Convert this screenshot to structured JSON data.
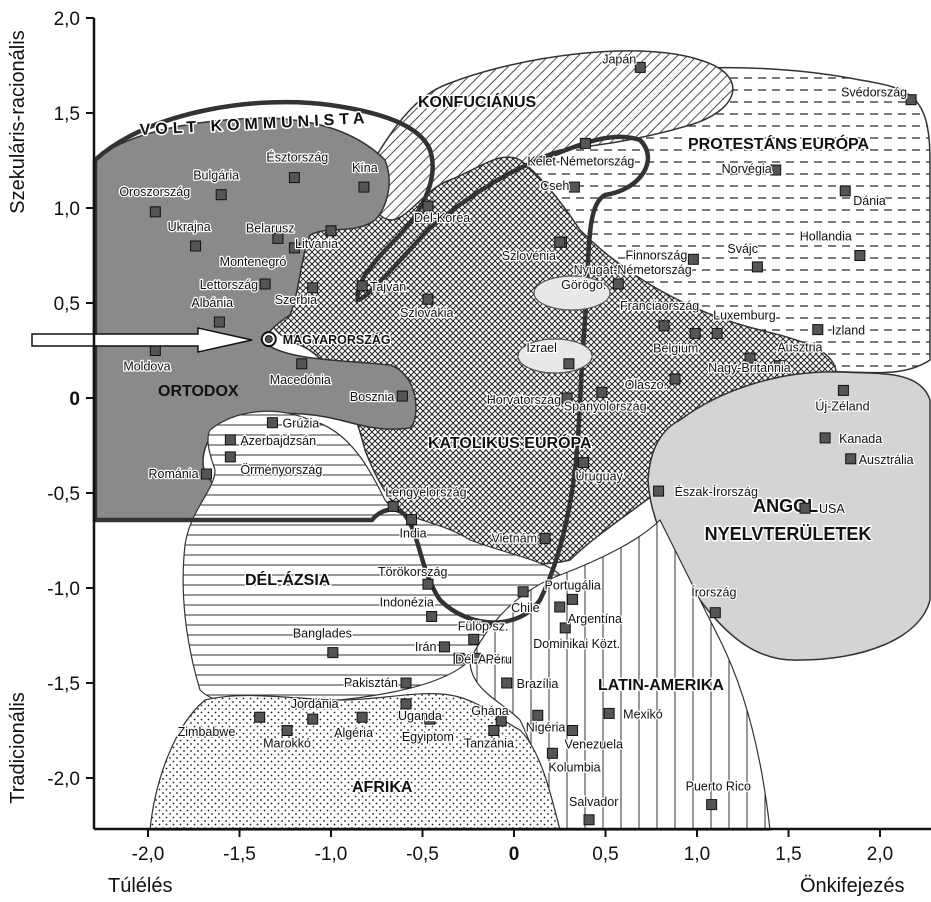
{
  "chart_data": {
    "type": "scatter",
    "xlabel_left": "Túlélés",
    "xlabel_right": "Önkifejezés",
    "ylabel_top": "Szekuláris-racionális",
    "ylabel_bottom": "Tradicionális",
    "xlim": [
      -2.2,
      2.2
    ],
    "ylim": [
      -2.25,
      2.0
    ],
    "x_ticks": [
      "-2,0",
      "-1,5",
      "-1,0",
      "-0,5",
      "0",
      "0,5",
      "1,0",
      "1,5",
      "2,0"
    ],
    "y_ticks": [
      "2,0",
      "1,5",
      "1,0",
      "0,5",
      "0",
      "-0,5",
      "-1,0",
      "-1,5",
      "-2,0"
    ],
    "regions": [
      {
        "name": "VOLT KOMMUNISTA"
      },
      {
        "name": "KONFUCIÁNUS"
      },
      {
        "name": "PROTESTÁNS EURÓPA"
      },
      {
        "name": "ORTODOX"
      },
      {
        "name": "KATOLIKUS EURÓPA"
      },
      {
        "name": "DÉL-ÁZSIA"
      },
      {
        "name": "ANGOL NYELVTERÜLETEK"
      },
      {
        "name": "LATIN-AMERIKA"
      },
      {
        "name": "AFRIKA"
      }
    ],
    "highlight": "MAGYARORSZÁG",
    "points": [
      {
        "name": "Japán",
        "x": 0.69,
        "y": 1.74
      },
      {
        "name": "Svédország",
        "x": 2.17,
        "y": 1.57
      },
      {
        "name": "Kelet-Németország",
        "x": 0.39,
        "y": 1.34
      },
      {
        "name": "Norvégia",
        "x": 1.43,
        "y": 1.2
      },
      {
        "name": "Dánia",
        "x": 1.81,
        "y": 1.09
      },
      {
        "name": "Cseh",
        "x": 0.33,
        "y": 1.11
      },
      {
        "name": "Nyugat-Németország",
        "x": 0.26,
        "y": 0.82
      },
      {
        "name": "Kína",
        "x": -0.82,
        "y": 1.11
      },
      {
        "name": "Dél-Korea",
        "x": -0.47,
        "y": 1.01
      },
      {
        "name": "Észtország",
        "x": -1.2,
        "y": 1.16
      },
      {
        "name": "Bulgária",
        "x": -1.6,
        "y": 1.07
      },
      {
        "name": "Oroszország",
        "x": -1.96,
        "y": 0.98
      },
      {
        "name": "Ukrajna",
        "x": -1.74,
        "y": 0.8
      },
      {
        "name": "Belarusz",
        "x": -1.29,
        "y": 0.84
      },
      {
        "name": "Montenegró",
        "x": -1.2,
        "y": 0.79
      },
      {
        "name": "Litvánia",
        "x": -1.0,
        "y": 0.88
      },
      {
        "name": "Lettország",
        "x": -1.36,
        "y": 0.6
      },
      {
        "name": "Szerbia",
        "x": -1.1,
        "y": 0.58
      },
      {
        "name": "Albánia",
        "x": -1.61,
        "y": 0.4
      },
      {
        "name": "Tajvan",
        "x": -0.83,
        "y": 0.59
      },
      {
        "name": "Szlovákia",
        "x": -0.47,
        "y": 0.52
      },
      {
        "name": "Szlovénia",
        "x": 0.25,
        "y": 0.82
      },
      {
        "name": "Finnország",
        "x": 0.98,
        "y": 0.73
      },
      {
        "name": "Svájc",
        "x": 1.33,
        "y": 0.69
      },
      {
        "name": "Hollandia",
        "x": 1.89,
        "y": 0.75
      },
      {
        "name": "Görögo.",
        "x": 0.57,
        "y": 0.6
      },
      {
        "name": "Franciaország",
        "x": 0.82,
        "y": 0.38
      },
      {
        "name": "Belgium",
        "x": 0.99,
        "y": 0.34
      },
      {
        "name": "Luxemburg",
        "x": 1.11,
        "y": 0.34
      },
      {
        "name": "Izland",
        "x": 1.66,
        "y": 0.36
      },
      {
        "name": "Moldova",
        "x": -1.96,
        "y": 0.25
      },
      {
        "name": "MAGYARORSZÁG",
        "x": -1.34,
        "y": 0.31
      },
      {
        "name": "Macedónia",
        "x": -1.16,
        "y": 0.18
      },
      {
        "name": "Izrael",
        "x": 0.3,
        "y": 0.18
      },
      {
        "name": "Ausztria",
        "x": 1.45,
        "y": 0.17
      },
      {
        "name": "Nagy-Britannia",
        "x": 1.29,
        "y": 0.21
      },
      {
        "name": "Olaszo.",
        "x": 0.88,
        "y": 0.1
      },
      {
        "name": "Spanyolország",
        "x": 0.48,
        "y": 0.03
      },
      {
        "name": "Horvátország",
        "x": 0.29,
        "y": 0.0
      },
      {
        "name": "Bosznia",
        "x": -0.61,
        "y": 0.01
      },
      {
        "name": "Új-Zéland",
        "x": 1.8,
        "y": 0.04
      },
      {
        "name": "Grúzia",
        "x": -1.32,
        "y": -0.13
      },
      {
        "name": "Azerbajdzsán",
        "x": -1.55,
        "y": -0.22
      },
      {
        "name": "Örményország",
        "x": -1.55,
        "y": -0.31
      },
      {
        "name": "Kanada",
        "x": 1.7,
        "y": -0.21
      },
      {
        "name": "Ausztrália",
        "x": 1.84,
        "y": -0.32
      },
      {
        "name": "Uruguay",
        "x": 0.38,
        "y": -0.34
      },
      {
        "name": "Románia",
        "x": -1.68,
        "y": -0.4
      },
      {
        "name": "Észak-Írország",
        "x": 0.79,
        "y": -0.49
      },
      {
        "name": "USA",
        "x": 1.59,
        "y": -0.58
      },
      {
        "name": "Lengyelország",
        "x": -0.66,
        "y": -0.57
      },
      {
        "name": "India",
        "x": -0.56,
        "y": -0.64
      },
      {
        "name": "Vietnám",
        "x": 0.17,
        "y": -0.74
      },
      {
        "name": "Törökország",
        "x": -0.47,
        "y": -0.98
      },
      {
        "name": "Portugália",
        "x": 0.32,
        "y": -1.06
      },
      {
        "name": "Chile",
        "x": 0.05,
        "y": -1.02
      },
      {
        "name": "Argentína",
        "x": 0.25,
        "y": -1.1
      },
      {
        "name": "Indonézia",
        "x": -0.45,
        "y": -1.15
      },
      {
        "name": "Írország",
        "x": 1.1,
        "y": -1.13
      },
      {
        "name": "Dominikai Közt.",
        "x": 0.28,
        "y": -1.21
      },
      {
        "name": "Fülöp sz.",
        "x": -0.22,
        "y": -1.27
      },
      {
        "name": "Irán",
        "x": -0.38,
        "y": -1.31
      },
      {
        "name": "Banglades",
        "x": -0.99,
        "y": -1.34
      },
      {
        "name": "Dél-Afrika",
        "x": -0.3,
        "y": -1.37
      },
      {
        "name": "Peru",
        "x": -0.21,
        "y": -1.37
      },
      {
        "name": "Pakisztán",
        "x": -0.59,
        "y": -1.5
      },
      {
        "name": "Brazília",
        "x": -0.04,
        "y": -1.5
      },
      {
        "name": "Uganda",
        "x": -0.59,
        "y": -1.61
      },
      {
        "name": "Mexikó",
        "x": 0.52,
        "y": -1.66
      },
      {
        "name": "Zimbabwe",
        "x": -1.39,
        "y": -1.68
      },
      {
        "name": "Jordánia",
        "x": -1.1,
        "y": -1.69
      },
      {
        "name": "Algéria",
        "x": -0.83,
        "y": -1.68
      },
      {
        "name": "Egyiptom",
        "x": -0.46,
        "y": -1.69
      },
      {
        "name": "Ghána",
        "x": -0.07,
        "y": -1.7
      },
      {
        "name": "Nigéria",
        "x": 0.13,
        "y": -1.67
      },
      {
        "name": "Marokkó",
        "x": -1.24,
        "y": -1.75
      },
      {
        "name": "Tanzánia",
        "x": -0.11,
        "y": -1.75
      },
      {
        "name": "Venezuela",
        "x": 0.32,
        "y": -1.75
      },
      {
        "name": "Kolumbia",
        "x": 0.21,
        "y": -1.87
      },
      {
        "name": "Salvador",
        "x": 0.41,
        "y": -2.22
      },
      {
        "name": "Puerto Rico",
        "x": 1.08,
        "y": -2.14
      }
    ]
  }
}
